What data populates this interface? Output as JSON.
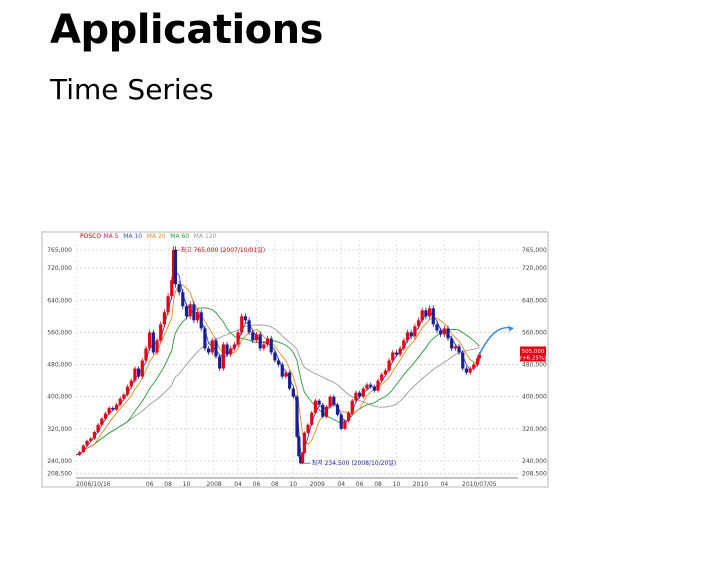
{
  "page": {
    "title": "Applications",
    "subtitle": "Time Series"
  },
  "chart_data": {
    "type": "line",
    "title": "",
    "xlabel": "",
    "ylabel": "",
    "legend": {
      "placement": "top-left",
      "entries": [
        {
          "label": "POSCO",
          "color": "#c00000"
        },
        {
          "label": "MA 5",
          "color": "#d02060"
        },
        {
          "label": "MA 10",
          "color": "#3050d0"
        },
        {
          "label": "MA 20",
          "color": "#e08a1e"
        },
        {
          "label": "MA 60",
          "color": "#2a9a3a"
        },
        {
          "label": "MA 120",
          "color": "#9a9a9a"
        }
      ]
    },
    "y_ticks": [
      208500,
      240000,
      320000,
      400000,
      480000,
      560000,
      640000,
      720000,
      765000
    ],
    "y_tick_labels": [
      "208,500",
      "240,000",
      "320,000",
      "400,000",
      "480,000",
      "560,000",
      "640,000",
      "720,000",
      "765,000"
    ],
    "ylim": [
      200000,
      790000
    ],
    "x_tick_labels": [
      "2006/10/16",
      "06",
      "08",
      "10",
      "2008",
      "04",
      "06",
      "08",
      "10",
      "2009",
      "04",
      "06",
      "08",
      "10",
      "2010",
      "04",
      "2010/07/05"
    ],
    "grid": true,
    "up_color": "#e60012",
    "down_color": "#1a1f8f",
    "price_series": [
      [
        0,
        255000
      ],
      [
        4,
        262000
      ],
      [
        8,
        278000
      ],
      [
        12,
        290000
      ],
      [
        16,
        296000
      ],
      [
        20,
        312000
      ],
      [
        24,
        330000
      ],
      [
        28,
        345000
      ],
      [
        32,
        358000
      ],
      [
        36,
        372000
      ],
      [
        40,
        368000
      ],
      [
        44,
        380000
      ],
      [
        48,
        395000
      ],
      [
        52,
        405000
      ],
      [
        56,
        425000
      ],
      [
        60,
        440000
      ],
      [
        64,
        470000
      ],
      [
        68,
        450000
      ],
      [
        72,
        490000
      ],
      [
        76,
        520000
      ],
      [
        80,
        560000
      ],
      [
        84,
        510000
      ],
      [
        88,
        540000
      ],
      [
        92,
        580000
      ],
      [
        96,
        610000
      ],
      [
        100,
        650000
      ],
      [
        104,
        690000
      ],
      [
        106,
        765000
      ],
      [
        108,
        680000
      ],
      [
        112,
        660000
      ],
      [
        116,
        625000
      ],
      [
        120,
        600000
      ],
      [
        124,
        630000
      ],
      [
        128,
        590000
      ],
      [
        132,
        610000
      ],
      [
        136,
        570000
      ],
      [
        140,
        520000
      ],
      [
        144,
        510000
      ],
      [
        148,
        540000
      ],
      [
        152,
        500000
      ],
      [
        156,
        470000
      ],
      [
        160,
        530000
      ],
      [
        164,
        505000
      ],
      [
        168,
        520000
      ],
      [
        172,
        530000
      ],
      [
        176,
        560000
      ],
      [
        180,
        600000
      ],
      [
        184,
        590000
      ],
      [
        188,
        560000
      ],
      [
        192,
        540000
      ],
      [
        196,
        555000
      ],
      [
        200,
        520000
      ],
      [
        204,
        530000
      ],
      [
        208,
        545000
      ],
      [
        212,
        510000
      ],
      [
        216,
        490000
      ],
      [
        220,
        480000
      ],
      [
        224,
        450000
      ],
      [
        228,
        460000
      ],
      [
        232,
        420000
      ],
      [
        236,
        400000
      ],
      [
        240,
        300000
      ],
      [
        242,
        252000
      ],
      [
        244,
        234500
      ],
      [
        246,
        260000
      ],
      [
        248,
        310000
      ],
      [
        252,
        330000
      ],
      [
        256,
        360000
      ],
      [
        260,
        390000
      ],
      [
        264,
        380000
      ],
      [
        268,
        350000
      ],
      [
        272,
        375000
      ],
      [
        276,
        400000
      ],
      [
        280,
        380000
      ],
      [
        284,
        355000
      ],
      [
        288,
        320000
      ],
      [
        292,
        340000
      ],
      [
        296,
        360000
      ],
      [
        300,
        390000
      ],
      [
        304,
        410000
      ],
      [
        308,
        400000
      ],
      [
        312,
        420000
      ],
      [
        316,
        430000
      ],
      [
        320,
        425000
      ],
      [
        324,
        415000
      ],
      [
        328,
        440000
      ],
      [
        332,
        455000
      ],
      [
        336,
        465000
      ],
      [
        340,
        490000
      ],
      [
        344,
        510000
      ],
      [
        348,
        505000
      ],
      [
        352,
        520000
      ],
      [
        356,
        540000
      ],
      [
        360,
        560000
      ],
      [
        364,
        550000
      ],
      [
        368,
        575000
      ],
      [
        372,
        590000
      ],
      [
        376,
        615000
      ],
      [
        380,
        600000
      ],
      [
        384,
        620000
      ],
      [
        388,
        580000
      ],
      [
        392,
        565000
      ],
      [
        396,
        555000
      ],
      [
        400,
        570000
      ],
      [
        404,
        545000
      ],
      [
        408,
        520000
      ],
      [
        412,
        525000
      ],
      [
        416,
        510000
      ],
      [
        420,
        470000
      ],
      [
        424,
        460000
      ],
      [
        428,
        470000
      ],
      [
        432,
        480000
      ],
      [
        436,
        495000
      ],
      [
        438,
        505000
      ]
    ],
    "annotations": {
      "high_label": "최고 765,000 (2007/10/01일)",
      "low_label": "최저 234,500 (2008/10/20일)",
      "current_value": "505,000",
      "current_change": "(+6.25%)",
      "high_value": 765000,
      "low_value": 234500,
      "current": 505000
    }
  }
}
